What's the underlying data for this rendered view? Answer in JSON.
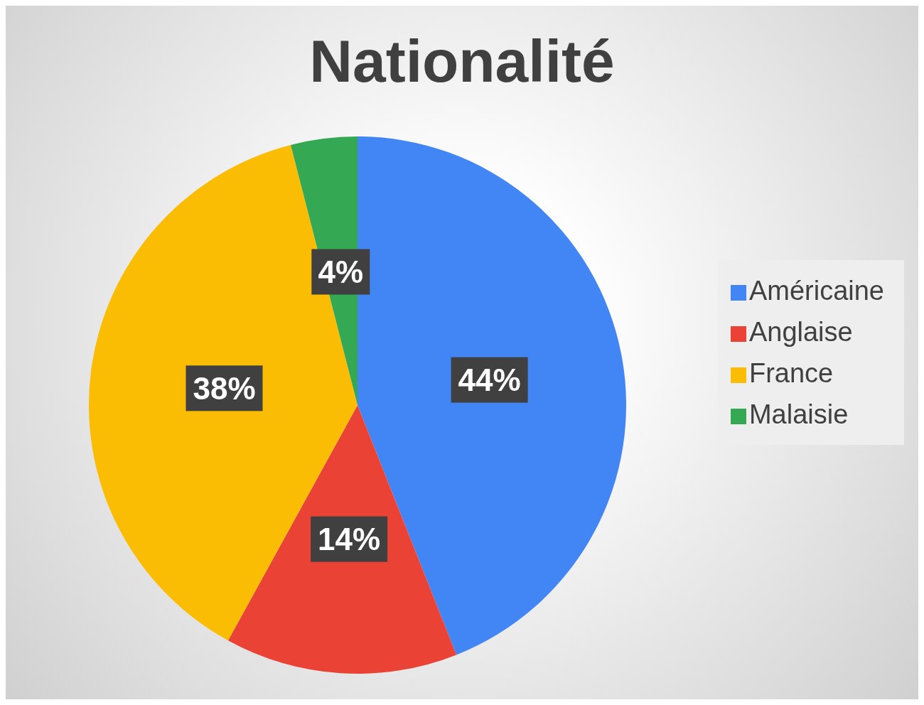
{
  "chart_data": {
    "type": "pie",
    "title": "Nationalité",
    "categories": [
      "Américaine",
      "Anglaise",
      "France",
      "Malaisie"
    ],
    "values": [
      44,
      14,
      38,
      4
    ],
    "colors": [
      "#4285f4",
      "#ea4335",
      "#fbbc04",
      "#34a853"
    ],
    "value_labels": [
      "44%",
      "14%",
      "38%",
      "4%"
    ],
    "legend": "right"
  }
}
